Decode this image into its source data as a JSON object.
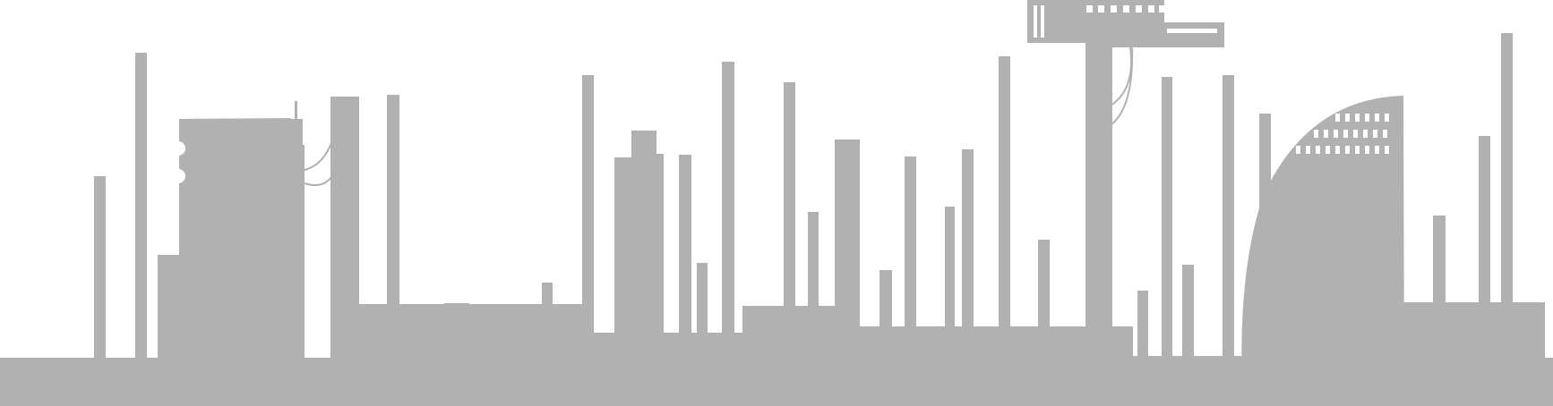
{
  "skyline": {
    "fill_color": "#b1b1b1",
    "background_color": "#ffffff",
    "window_color": "#ffffff"
  }
}
